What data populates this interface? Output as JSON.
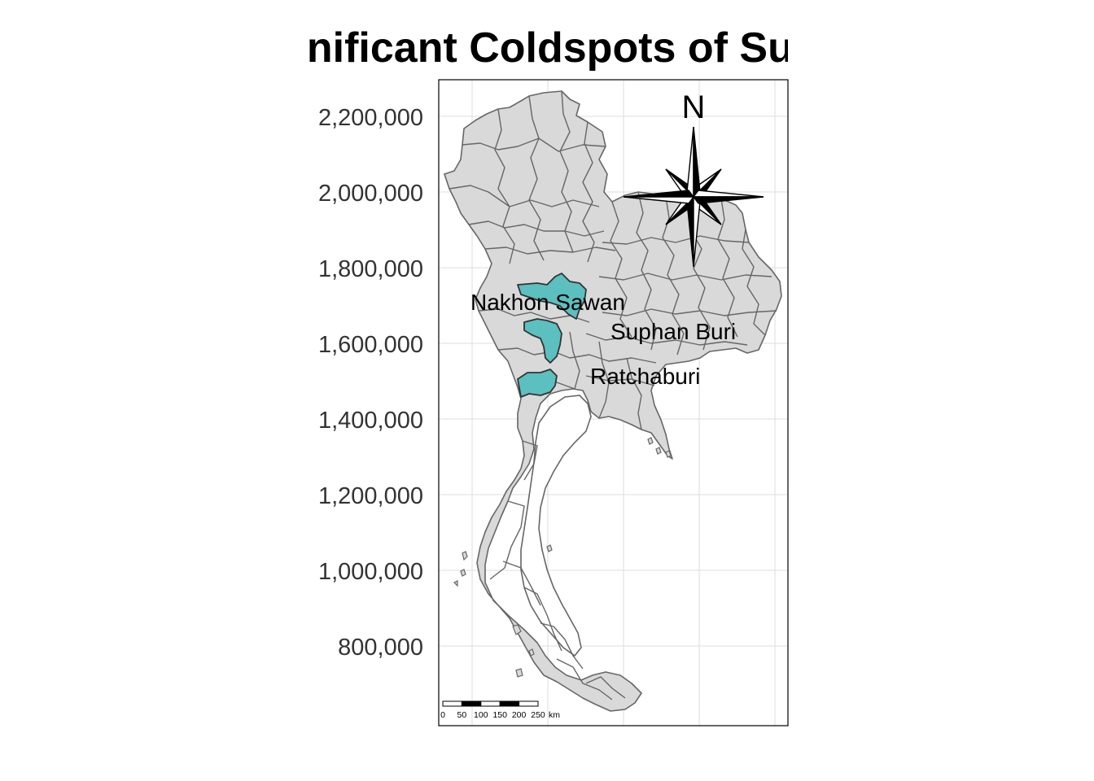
{
  "title": "Significant Coldspots of Suspected",
  "y_axis": {
    "ticks": [
      "2,200,000",
      "2,000,000",
      "1,800,000",
      "1,600,000",
      "1,400,000",
      "1,200,000",
      "1,000,000",
      "800,000"
    ]
  },
  "labels": {
    "nakhon_sawan": "Nakhon Sawan",
    "suphan_buri": "Suphan Buri",
    "ratchaburi": "Ratchaburi"
  },
  "north_arrow": {
    "letter": "N"
  },
  "scale_bar": {
    "labels": [
      "0",
      "50",
      "100",
      "150",
      "200",
      "250"
    ],
    "unit": "km"
  },
  "colors": {
    "province_fill": "#d9d9d9",
    "province_border": "#666666",
    "coldspot_fill": "#5cbfc0",
    "grid": "#dcdcdc",
    "panel_border": "#000000"
  }
}
